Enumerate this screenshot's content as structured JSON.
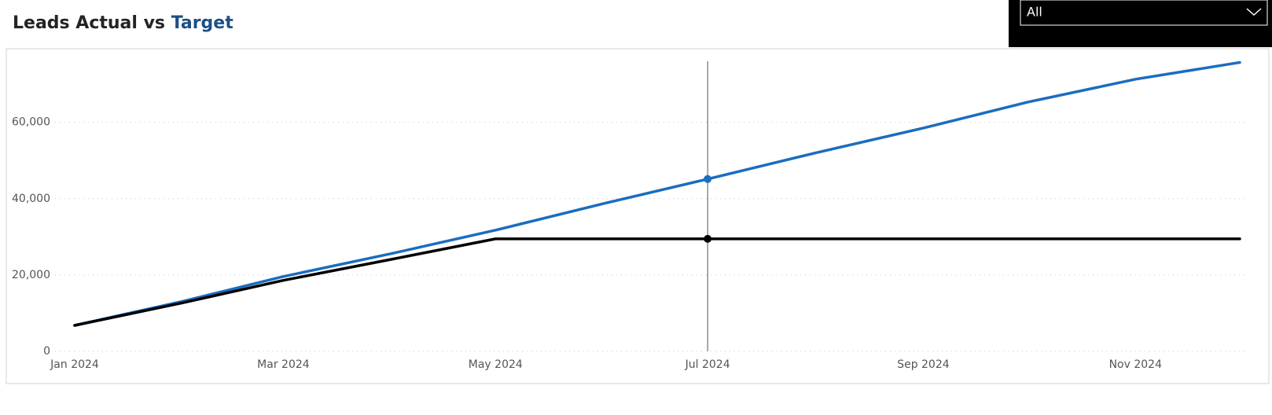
{
  "chart_data": {
    "type": "line",
    "title": "Leads Actual vs",
    "title_highlight": "Target",
    "filter": "All",
    "x": [
      "2024-01",
      "2024-02",
      "2024-03",
      "2024-04",
      "2024-05",
      "2024-06",
      "2024-07",
      "2024-08",
      "2024-09",
      "2024-10",
      "2024-11",
      "2024-12"
    ],
    "xticks": [
      {
        "value": "2024-01",
        "label": "Jan 2024"
      },
      {
        "value": "2024-03",
        "label": "Mar 2024"
      },
      {
        "value": "2024-05",
        "label": "May 2024"
      },
      {
        "value": "2024-07",
        "label": "Jul 2024"
      },
      {
        "value": "2024-09",
        "label": "Sep 2024"
      },
      {
        "value": "2024-11",
        "label": "Nov 2024"
      }
    ],
    "series": [
      {
        "color": "#1a6dbf",
        "values": [
          6800,
          13100,
          19600,
          25600,
          31750,
          38700,
          45150,
          52000,
          58500,
          65300,
          71300,
          75700
        ]
      },
      {
        "color": "#000000",
        "values": [
          6800,
          12700,
          18600,
          24100,
          29480,
          29480,
          29480,
          29480,
          29480,
          29480,
          29480,
          29480
        ]
      }
    ],
    "ylim": [
      0,
      76000
    ],
    "yticks": [
      0,
      {
        "value": 20000,
        "label": "20,000"
      },
      {
        "value": 40000,
        "label": "40,000"
      },
      {
        "value": 60000,
        "label": "60,000"
      }
    ],
    "grid": true
  }
}
